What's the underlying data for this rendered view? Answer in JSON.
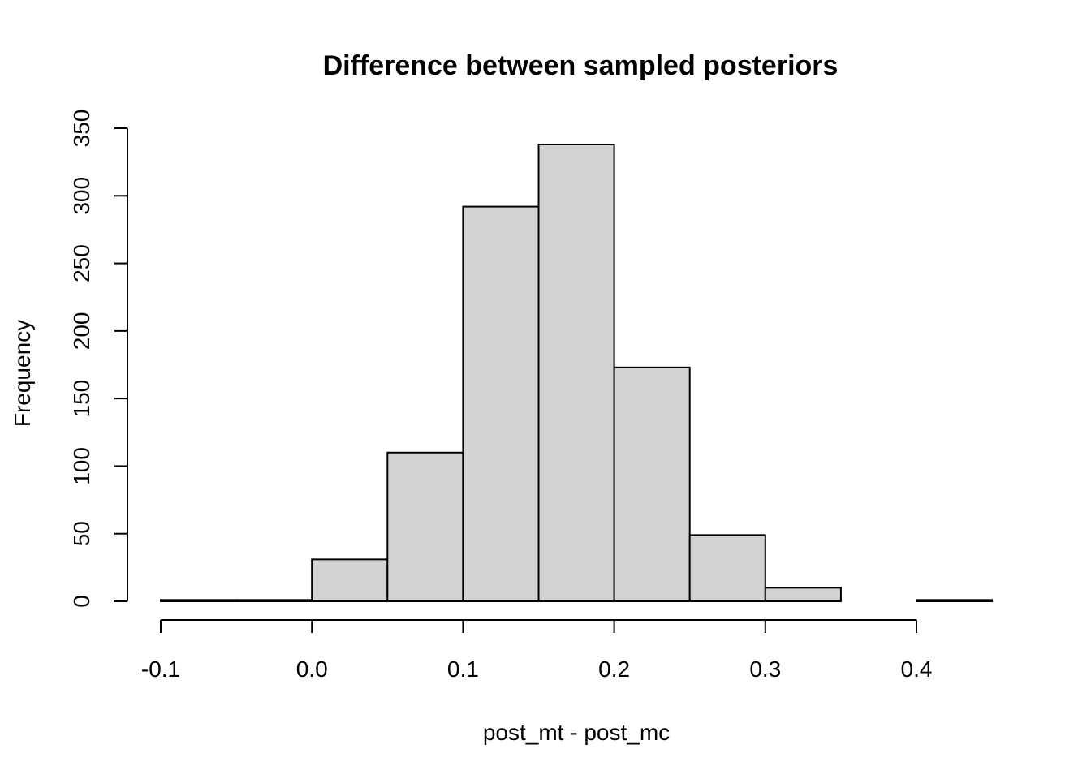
{
  "chart_data": {
    "type": "bar",
    "title": "Difference between sampled posteriors",
    "xlabel": "post_mt - post_mc",
    "ylabel": "Frequency",
    "bin_edges": [
      -0.1,
      -0.05,
      0.0,
      0.05,
      0.1,
      0.15,
      0.2,
      0.25,
      0.3,
      0.35,
      0.4,
      0.45
    ],
    "values": [
      1,
      1,
      31,
      110,
      292,
      338,
      173,
      49,
      10,
      0,
      1
    ],
    "xlim": [
      -0.1,
      0.45
    ],
    "ylim": [
      0,
      350
    ],
    "x_ticks": [
      "-0.1",
      "0.0",
      "0.1",
      "0.2",
      "0.3",
      "0.4"
    ],
    "y_ticks": [
      "0",
      "50",
      "100",
      "150",
      "200",
      "250",
      "300",
      "350"
    ],
    "grid": false,
    "colors": {
      "bar_fill": "#d3d3d3",
      "bar_stroke": "#000000"
    }
  }
}
